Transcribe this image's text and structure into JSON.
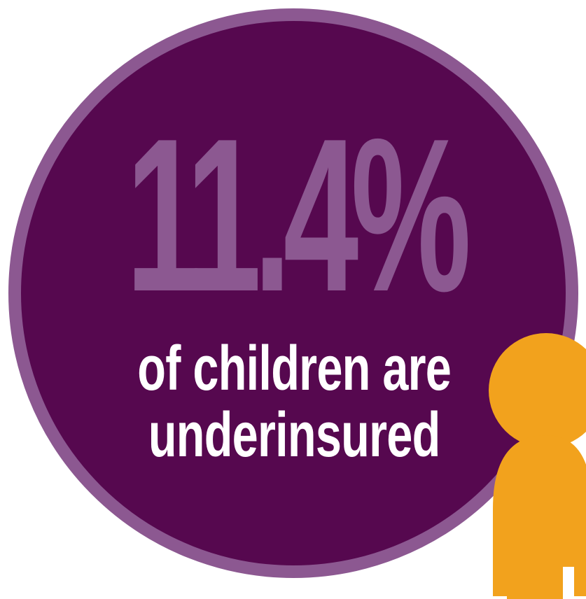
{
  "stat": {
    "value": "11.4%",
    "caption_line1": "of children are",
    "caption_line2": "underinsured"
  },
  "colors": {
    "circle_fill": "#56084f",
    "circle_ring": "#8c5891",
    "stat_text": "#8c5891",
    "caption_text": "#ffffff",
    "figure": "#f2a21d"
  },
  "icons": {
    "figure": "child-figure-icon"
  }
}
